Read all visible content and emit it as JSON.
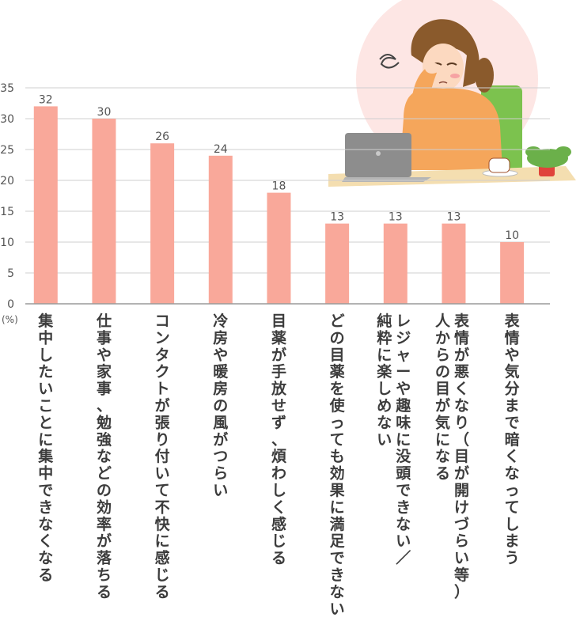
{
  "chart_data": {
    "type": "bar",
    "unit_label": "(%)",
    "ylim": [
      0,
      35
    ],
    "yticks": [
      0,
      5,
      10,
      15,
      20,
      25,
      30,
      35
    ],
    "grid": true,
    "bar_color": "#f9a89a",
    "categories": [
      "集中したいことに集中できなくなる",
      "仕事や家事、勉強などの効率が落ちる",
      "コンタクトが張り付いて不快に感じる",
      "冷房や暖房の風がつらい",
      "目薬が手放せず、煩わしく感じる",
      "どの目薬を使っても効果に満足できない",
      "レジャーや趣味に没頭できない／純粋に楽しめない",
      "表情が悪くなり（目が開けづらい等）人からの目が気になる",
      "表情や気分まで暗くなってしまう"
    ],
    "category_lines": [
      [
        "集中したいことに集中できなくなる"
      ],
      [
        "仕事や家事、勉強などの効率が落ちる"
      ],
      [
        "コンタクトが張り付いて不快に感じる"
      ],
      [
        "冷房や暖房の風がつらい"
      ],
      [
        "目薬が手放せず、煩わしく感じる"
      ],
      [
        "どの目薬を使っても効果に満足できない"
      ],
      [
        "レジャーや趣味に没頭できない／",
        "純粋に楽しめない"
      ],
      [
        "表情が悪くなり（目が開けづらい等）",
        "人からの目が気になる"
      ],
      [
        "表情や気分まで暗くなってしまう"
      ]
    ],
    "values": [
      32,
      30,
      26,
      24,
      18,
      13,
      13,
      13,
      10
    ]
  },
  "illustration": {
    "subject": "woman-rubbing-tired-eyes-at-laptop",
    "circle_color": "#fde6e4",
    "sweater_color": "#f5a65b",
    "chair_color": "#7cc24e",
    "desk_color": "#f4deb0"
  }
}
